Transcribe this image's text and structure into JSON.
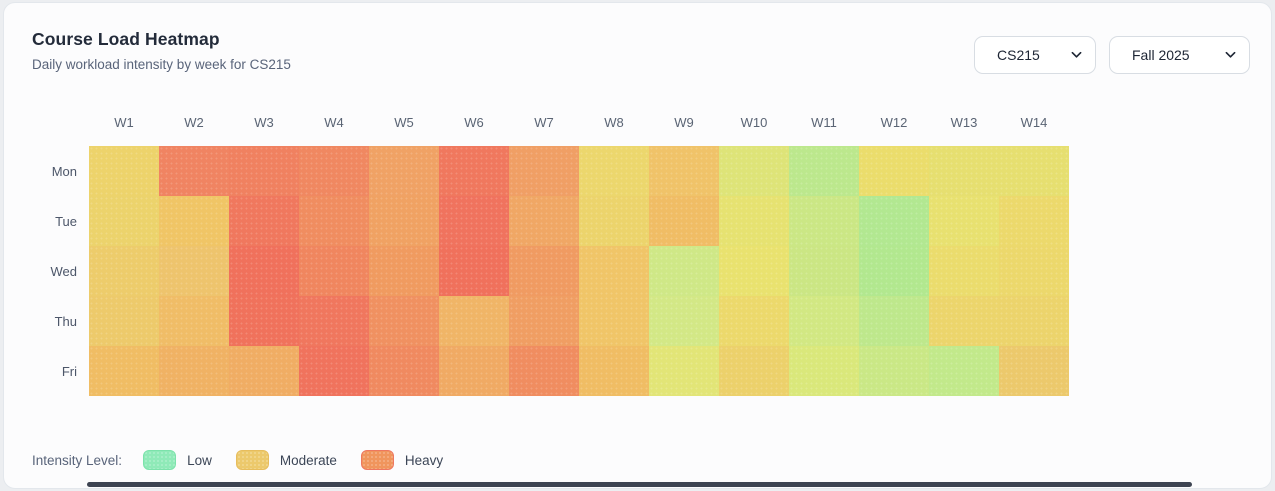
{
  "header": {
    "title": "Course Load Heatmap",
    "subtitle": "Daily workload intensity by week for CS215",
    "course_select": {
      "value": "CS215"
    },
    "term_select": {
      "value": "Fall 2025"
    }
  },
  "legend": {
    "label": "Intensity Level:",
    "items": [
      {
        "label": "Low",
        "color": "#8feab8",
        "border": "#7ce2ab"
      },
      {
        "label": "Moderate",
        "color": "#ecc96c",
        "border": "#e7bd5d"
      },
      {
        "label": "Heavy",
        "color": "#f0955d",
        "border": "#ee7760"
      }
    ]
  },
  "chart_data": {
    "type": "heatmap",
    "title": "Course Load Heatmap",
    "subtitle": "Daily workload intensity by week for CS215",
    "x_labels": [
      "W1",
      "W2",
      "W3",
      "W4",
      "W5",
      "W6",
      "W7",
      "W8",
      "W9",
      "W10",
      "W11",
      "W12",
      "W13",
      "W14"
    ],
    "y_labels": [
      "Mon",
      "Tue",
      "Wed",
      "Thu",
      "Fri"
    ],
    "value_scale": "intensity 0 (low/green) to 10 (heavy/red), estimated from cell color",
    "legend_position": "bottom-left",
    "values": [
      [
        5.0,
        8.6,
        8.7,
        8.4,
        7.4,
        8.9,
        7.5,
        5.1,
        6.1,
        3.7,
        2.2,
        4.6,
        4.3,
        4.3
      ],
      [
        5.2,
        6.2,
        8.9,
        8.2,
        7.4,
        9.1,
        7.3,
        5.2,
        6.4,
        4.1,
        2.9,
        2.1,
        4.3,
        5.1
      ],
      [
        5.6,
        6.1,
        9.3,
        8.5,
        7.7,
        9.3,
        7.7,
        6.1,
        3.0,
        4.4,
        2.9,
        2.1,
        5.0,
        5.1
      ],
      [
        5.7,
        6.5,
        9.2,
        9.0,
        8.0,
        6.7,
        7.6,
        6.1,
        3.1,
        5.1,
        3.2,
        2.4,
        5.2,
        5.2
      ],
      [
        6.5,
        6.9,
        7.1,
        9.2,
        8.4,
        7.2,
        8.2,
        6.5,
        3.9,
        5.4,
        3.5,
        2.9,
        2.5,
        5.7
      ]
    ],
    "colors": [
      [
        "#edd36b",
        "#f08462",
        "#f08160",
        "#f08861",
        "#f0a265",
        "#f0785e",
        "#f09f65",
        "#ecd76d",
        "#f0c369",
        "#dee478",
        "#bce88d",
        "#ebdd6c",
        "#e6df70",
        "#e6df70"
      ],
      [
        "#ecd36c",
        "#f0c566",
        "#f0785e",
        "#f08d60",
        "#f0a263",
        "#f0735e",
        "#f0a765",
        "#ecd46c",
        "#f0bd65",
        "#e6e271",
        "#cbe785",
        "#b2e891",
        "#e8e170",
        "#ecd96c"
      ],
      [
        "#edcc6b",
        "#eec46d",
        "#f0715c",
        "#f0865f",
        "#f09b60",
        "#f0715c",
        "#f09b62",
        "#f0c568",
        "#cfe887",
        "#e9e26f",
        "#cbe684",
        "#b2e88f",
        "#ebdc6d",
        "#ecd86c"
      ],
      [
        "#edca6b",
        "#f0bd67",
        "#f0725c",
        "#f0775e",
        "#f09161",
        "#f0b567",
        "#f09e63",
        "#f0c568",
        "#d3e886",
        "#ecd96c",
        "#d2e883",
        "#bee88c",
        "#ecd56c",
        "#ecd46c"
      ],
      [
        "#f0bd64",
        "#f0b264",
        "#f0ad64",
        "#f0735d",
        "#f08a60",
        "#f0aa64",
        "#f08d60",
        "#f0bd64",
        "#e2e577",
        "#ecd16b",
        "#dae87b",
        "#cae886",
        "#c2e98b",
        "#ecc96c"
      ]
    ]
  }
}
